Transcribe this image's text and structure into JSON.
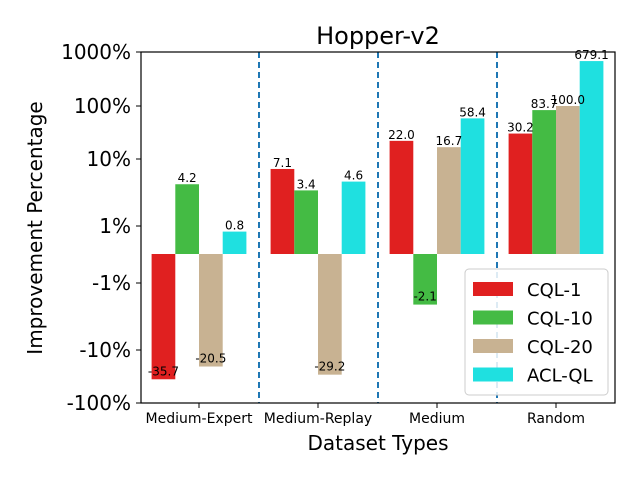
{
  "chart_data": {
    "type": "bar",
    "title": "Hopper-v2",
    "xlabel": "Dataset Types",
    "ylabel": "Improvement Percentage",
    "yscale": "symlog",
    "categories": [
      "Medium-Expert",
      "Medium-Replay",
      "Medium",
      "Random"
    ],
    "yticks": [
      {
        "label": "-100%",
        "value": -100
      },
      {
        "label": "-10%",
        "value": -10
      },
      {
        "label": "-1%",
        "value": -1
      },
      {
        "label": "1%",
        "value": 1
      },
      {
        "label": "10%",
        "value": 10
      },
      {
        "label": "100%",
        "value": 100
      },
      {
        "label": "1000%",
        "value": 1000
      }
    ],
    "series": [
      {
        "name": "CQL-1",
        "color": "#e02020",
        "values": [
          -35.7,
          7.1,
          22.0,
          30.2
        ],
        "labels": [
          "-35.7",
          "7.1",
          "22.0",
          "30.2"
        ]
      },
      {
        "name": "CQL-10",
        "color": "#44bb44",
        "values": [
          4.2,
          3.4,
          -2.1,
          83.7
        ],
        "labels": [
          "4.2",
          "3.4",
          "-2.1",
          "83.7"
        ]
      },
      {
        "name": "CQL-20",
        "color": "#c8b292",
        "values": [
          -20.5,
          -29.2,
          16.7,
          100.0
        ],
        "labels": [
          "-20.5",
          "-29.2",
          "16.7",
          "100.0"
        ]
      },
      {
        "name": "ACL-QL",
        "color": "#1fe0e0",
        "values": [
          0.8,
          4.6,
          58.4,
          679.1
        ],
        "labels": [
          "0.8",
          "4.6",
          "58.4",
          "679.1"
        ]
      }
    ],
    "separator_color": "#1f77b4",
    "legend_position": "bottom-right"
  }
}
